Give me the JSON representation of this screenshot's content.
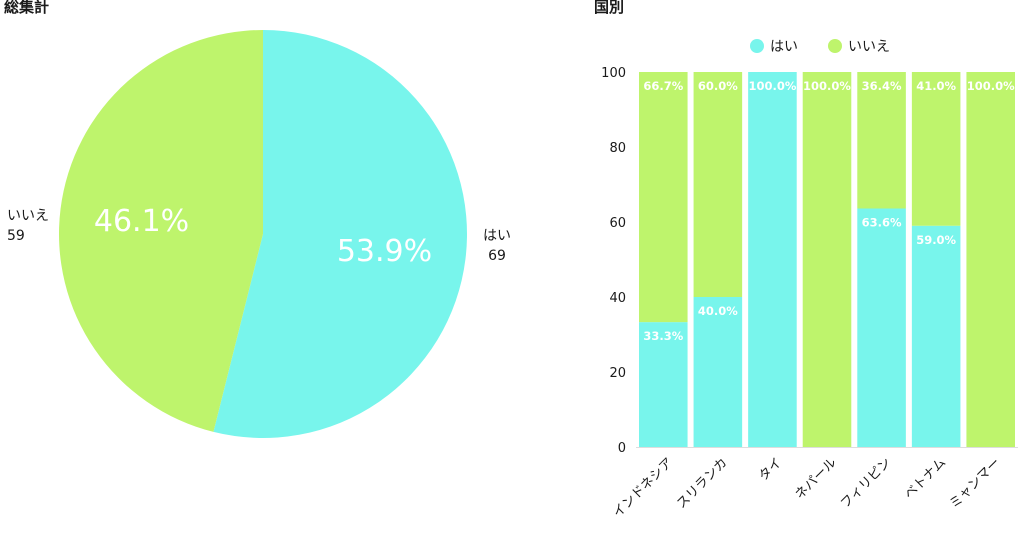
{
  "chart_data": [
    {
      "type": "pie",
      "title": "総集計",
      "slices": [
        {
          "label": "はい",
          "value": 69,
          "percent_label": "53.9%",
          "color": "#78f5ec"
        },
        {
          "label": "いいえ",
          "value": 59,
          "percent_label": "46.1%",
          "color": "#bef46c"
        }
      ]
    },
    {
      "type": "bar",
      "stacked": true,
      "title": "国別",
      "categories": [
        "インドネシア",
        "スリランカ",
        "タイ",
        "ネパール",
        "フィリピン",
        "ベトナム",
        "ミャンマー"
      ],
      "series": [
        {
          "name": "はい",
          "color": "#78f5ec",
          "values": [
            33.3,
            40.0,
            100.0,
            0,
            63.6,
            59.0,
            0
          ],
          "labels": [
            "33.3%",
            "40.0%",
            "100.0%",
            "",
            "63.6%",
            "59.0%",
            ""
          ]
        },
        {
          "name": "いいえ",
          "color": "#bef46c",
          "values": [
            66.7,
            60.0,
            0,
            100.0,
            36.4,
            41.0,
            100.0
          ],
          "labels": [
            "66.7%",
            "60.0%",
            "",
            "100.0%",
            "36.4%",
            "41.0%",
            "100.0%"
          ]
        }
      ],
      "ylim": [
        0,
        100
      ],
      "yticks": [
        "0",
        "20",
        "40",
        "60",
        "80",
        "100"
      ],
      "legend_position": "top"
    }
  ]
}
